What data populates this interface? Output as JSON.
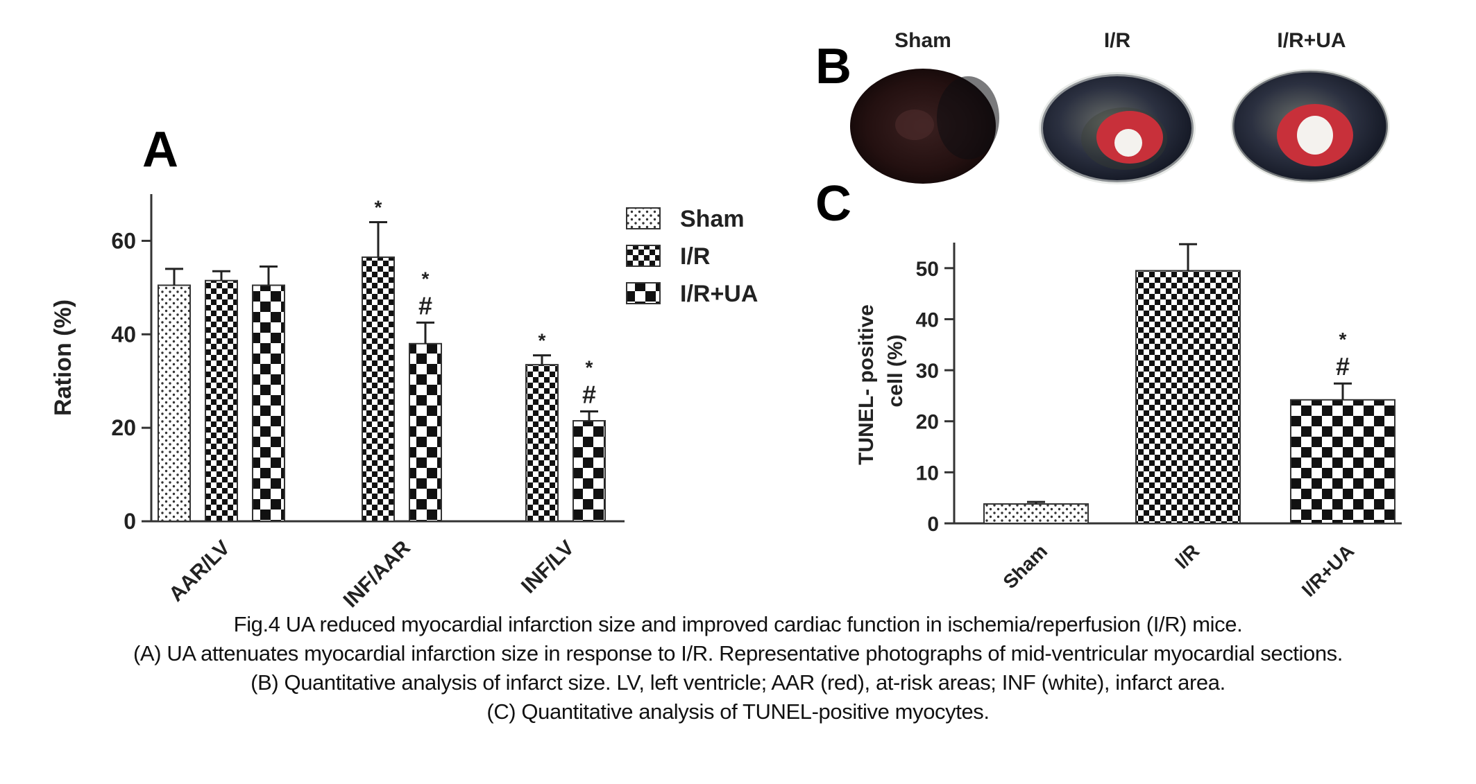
{
  "figure": {
    "caption_lines": [
      "Fig.4 UA reduced myocardial infarction size and improved cardiac function in ischemia/reperfusion (I/R) mice.",
      "(A) UA attenuates myocardial infarction size in response to I/R. Representative photographs of mid-ventricular myocardial sections.",
      "(B) Quantitative analysis of infarct size. LV, left ventricle; AAR (red), at-risk areas; INF (white), infarct area.",
      "(C) Quantitative analysis of TUNEL-positive myocytes."
    ],
    "panel_labels": {
      "a": "A",
      "b": "B",
      "c": "C"
    },
    "panel_b": {
      "sections": [
        "Sham",
        "I/R",
        "I/R+UA"
      ],
      "colors": {
        "tissue_dark": "#2a1414",
        "tissue_blue": "#1b2230",
        "infarct_red": "#c8303a",
        "infarct_white": "#f4f2ee",
        "rim_light": "#d8dcd8"
      }
    }
  },
  "chart_data": [
    {
      "panel": "A",
      "type": "bar",
      "title": "",
      "xlabel": "",
      "ylabel": "Ration (%)",
      "ylim": [
        0,
        70
      ],
      "yticks": [
        0,
        20,
        40,
        60
      ],
      "categories": [
        "AAR/LV",
        "INF/AAR",
        "INF/LV"
      ],
      "legend_position": "top-right",
      "series": [
        {
          "name": "Sham",
          "pattern": "dots",
          "values": [
            50.5,
            null,
            null
          ],
          "errors": [
            3.5,
            null,
            null
          ],
          "annotations": [
            "",
            "",
            ""
          ]
        },
        {
          "name": "I/R",
          "pattern": "small-checker",
          "values": [
            51.5,
            56.5,
            33.5
          ],
          "errors": [
            2.0,
            7.5,
            2.0
          ],
          "annotations": [
            "",
            "*",
            "*"
          ]
        },
        {
          "name": "I/R+UA",
          "pattern": "large-checker",
          "values": [
            50.5,
            38.0,
            21.5
          ],
          "errors": [
            4.0,
            4.5,
            2.0
          ],
          "annotations": [
            "",
            "*\n#",
            "*\n#"
          ]
        }
      ]
    },
    {
      "panel": "C",
      "type": "bar",
      "title": "",
      "xlabel": "",
      "ylabel_lines": [
        "TUNEL- positive",
        "cell (%)"
      ],
      "ylim": [
        0,
        55
      ],
      "yticks": [
        0,
        10,
        20,
        30,
        40,
        50
      ],
      "categories": [
        "Sham",
        "I/R",
        "I/R+UA"
      ],
      "values": [
        3.8,
        49.5,
        24.2
      ],
      "errors": [
        0.4,
        5.2,
        3.2
      ],
      "patterns": [
        "dots",
        "small-checker",
        "large-checker"
      ],
      "annotations": [
        "",
        "",
        "*\n#"
      ]
    }
  ]
}
